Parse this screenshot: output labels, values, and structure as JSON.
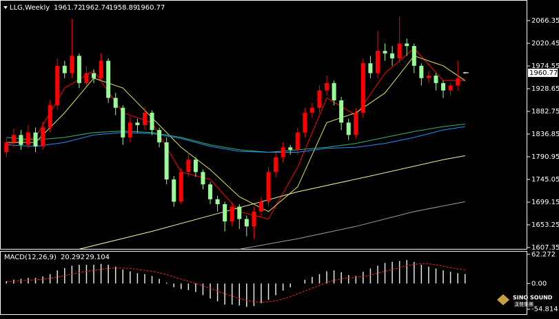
{
  "chart_data": [
    {
      "type": "candlestick",
      "title": "LLG,Weekly",
      "open": [
        1800,
        1820,
        1835,
        1815,
        1840,
        1812,
        1850,
        1895,
        1975,
        1960,
        1995,
        1940,
        1960,
        1950,
        1985,
        1910,
        1890,
        1830,
        1860,
        1855,
        1880,
        1845,
        1820,
        1745,
        1700,
        1760,
        1785,
        1760,
        1735,
        1705,
        1695,
        1660,
        1690,
        1665,
        1650,
        1680,
        1700,
        1760,
        1790,
        1810,
        1805,
        1840,
        1880,
        1890,
        1925,
        1940,
        1905,
        1860,
        1835,
        1880,
        1980,
        1960,
        2005,
        2000,
        1990,
        2020,
        2015,
        1975,
        1950,
        1955,
        1940,
        1925,
        1935,
        1961.72
      ],
      "high": [
        1830,
        1848,
        1845,
        1855,
        1850,
        1862,
        1905,
        1990,
        1985,
        2070,
        2000,
        1975,
        1968,
        2000,
        1990,
        1920,
        1895,
        1872,
        1868,
        1892,
        1885,
        1850,
        1830,
        1752,
        1768,
        1800,
        1790,
        1765,
        1740,
        1712,
        1700,
        1698,
        1695,
        1672,
        1690,
        1710,
        1770,
        1800,
        1820,
        1815,
        1850,
        1890,
        1900,
        1935,
        1955,
        1945,
        1912,
        1868,
        1890,
        1990,
        1995,
        2045,
        2020,
        2015,
        2075,
        2030,
        2020,
        1980,
        1965,
        1960,
        1945,
        1940,
        1985,
        1962.74
      ],
      "low": [
        1790,
        1810,
        1805,
        1808,
        1800,
        1805,
        1840,
        1885,
        1950,
        1950,
        1930,
        1935,
        1940,
        1945,
        1900,
        1875,
        1815,
        1820,
        1840,
        1845,
        1835,
        1810,
        1735,
        1690,
        1695,
        1750,
        1750,
        1725,
        1695,
        1680,
        1640,
        1650,
        1645,
        1630,
        1625,
        1668,
        1690,
        1750,
        1780,
        1795,
        1795,
        1830,
        1870,
        1880,
        1915,
        1895,
        1845,
        1825,
        1828,
        1870,
        1950,
        1950,
        1985,
        1975,
        1980,
        1995,
        1960,
        1935,
        1940,
        1925,
        1910,
        1915,
        1925,
        1958.89
      ],
      "close": [
        1820,
        1835,
        1815,
        1840,
        1812,
        1850,
        1895,
        1975,
        1960,
        1995,
        1940,
        1960,
        1950,
        1985,
        1910,
        1890,
        1830,
        1860,
        1855,
        1880,
        1845,
        1820,
        1745,
        1700,
        1760,
        1785,
        1760,
        1735,
        1705,
        1695,
        1660,
        1690,
        1665,
        1650,
        1680,
        1700,
        1760,
        1790,
        1810,
        1805,
        1840,
        1880,
        1890,
        1925,
        1940,
        1905,
        1860,
        1835,
        1880,
        1980,
        1960,
        2005,
        2000,
        1990,
        2020,
        2015,
        1975,
        1950,
        1955,
        1940,
        1925,
        1935,
        1950,
        1960.77
      ],
      "up_color": "#ff0000",
      "down_color": "#98fb98",
      "lines": [
        {
          "color": "#ff0000",
          "x": [
            0,
            4,
            8,
            12,
            16,
            20,
            24,
            28,
            32,
            36,
            40,
            44,
            48,
            52,
            56,
            60,
            63
          ],
          "values": [
            1815,
            1830,
            1930,
            1965,
            1880,
            1860,
            1760,
            1745,
            1680,
            1665,
            1770,
            1910,
            1875,
            1960,
            2010,
            1945,
            1945
          ]
        },
        {
          "color": "#e6e64c",
          "x": [
            0,
            4,
            8,
            12,
            16,
            20,
            24,
            28,
            32,
            36,
            40,
            44,
            48,
            52,
            56,
            60,
            63
          ],
          "values": [
            1820,
            1820,
            1880,
            1950,
            1930,
            1870,
            1810,
            1765,
            1710,
            1680,
            1730,
            1860,
            1880,
            1920,
            1995,
            1975,
            1945
          ]
        },
        {
          "color": "#3cb371",
          "x": [
            0,
            4,
            8,
            12,
            16,
            20,
            24,
            28,
            32,
            36,
            40,
            44,
            48,
            52,
            56,
            60,
            63
          ],
          "values": [
            1830,
            1825,
            1830,
            1840,
            1843,
            1840,
            1830,
            1815,
            1805,
            1800,
            1805,
            1810,
            1818,
            1830,
            1842,
            1852,
            1857
          ]
        },
        {
          "color": "#1e90ff",
          "x": [
            0,
            4,
            8,
            12,
            16,
            20,
            24,
            28,
            32,
            36,
            40,
            44,
            48,
            52,
            56,
            60,
            63
          ],
          "values": [
            1815,
            1812,
            1820,
            1835,
            1840,
            1838,
            1828,
            1812,
            1802,
            1800,
            1800,
            1808,
            1810,
            1818,
            1830,
            1845,
            1852
          ]
        },
        {
          "color": "#f5f5a0",
          "x": [
            10,
            20,
            30,
            40,
            50,
            60,
            63
          ],
          "values": [
            1604,
            1640,
            1680,
            1720,
            1752,
            1785,
            1793
          ]
        },
        {
          "color": "#a0a0a0",
          "x": [
            32,
            40,
            48,
            56,
            63
          ],
          "values": [
            1604,
            1625,
            1650,
            1680,
            1700
          ]
        }
      ],
      "ylim": [
        1604.57,
        2105.29
      ],
      "yticks": [
        1607.35,
        1653.25,
        1699.15,
        1745.05,
        1790.95,
        1836.85,
        1882.75,
        1928.65,
        1974.55,
        2020.45,
        2066.35
      ]
    },
    {
      "type": "macd",
      "title": "MACD(12,26,9)",
      "hist": [
        5,
        8,
        10,
        12,
        12,
        15,
        20,
        28,
        33,
        38,
        40,
        40,
        40,
        42,
        40,
        36,
        30,
        26,
        22,
        20,
        16,
        10,
        2,
        -8,
        -12,
        -14,
        -18,
        -25,
        -32,
        -38,
        -45,
        -45,
        -47,
        -50,
        -48,
        -42,
        -35,
        -25,
        -15,
        -8,
        0,
        8,
        14,
        20,
        26,
        28,
        24,
        18,
        16,
        25,
        32,
        38,
        44,
        46,
        48,
        50,
        46,
        40,
        36,
        32,
        28,
        25,
        22,
        20.292
      ],
      "signal": [
        4,
        5,
        6,
        7,
        8,
        9,
        11,
        14,
        17,
        20,
        23,
        26,
        28,
        30,
        32,
        33,
        33,
        32,
        30,
        28,
        26,
        23,
        19,
        14,
        9,
        5,
        0,
        -5,
        -10,
        -16,
        -22,
        -27,
        -32,
        -36,
        -39,
        -40,
        -39,
        -37,
        -33,
        -28,
        -22,
        -16,
        -10,
        -4,
        2,
        7,
        10,
        12,
        13,
        15,
        18,
        22,
        26,
        30,
        34,
        38,
        41,
        42,
        42,
        40,
        37,
        34,
        31,
        29.104
      ],
      "hist_color": "#e8e8e8",
      "signal_color": "#ff2020",
      "ylim": [
        -64,
        68
      ],
      "yticks": [
        62.272,
        {
          "value": 0,
          "label": "0.00"
        },
        -54.814
      ]
    }
  ],
  "logo": {
    "text": "SINO SOUND",
    "subtext": "漢聲集團"
  }
}
